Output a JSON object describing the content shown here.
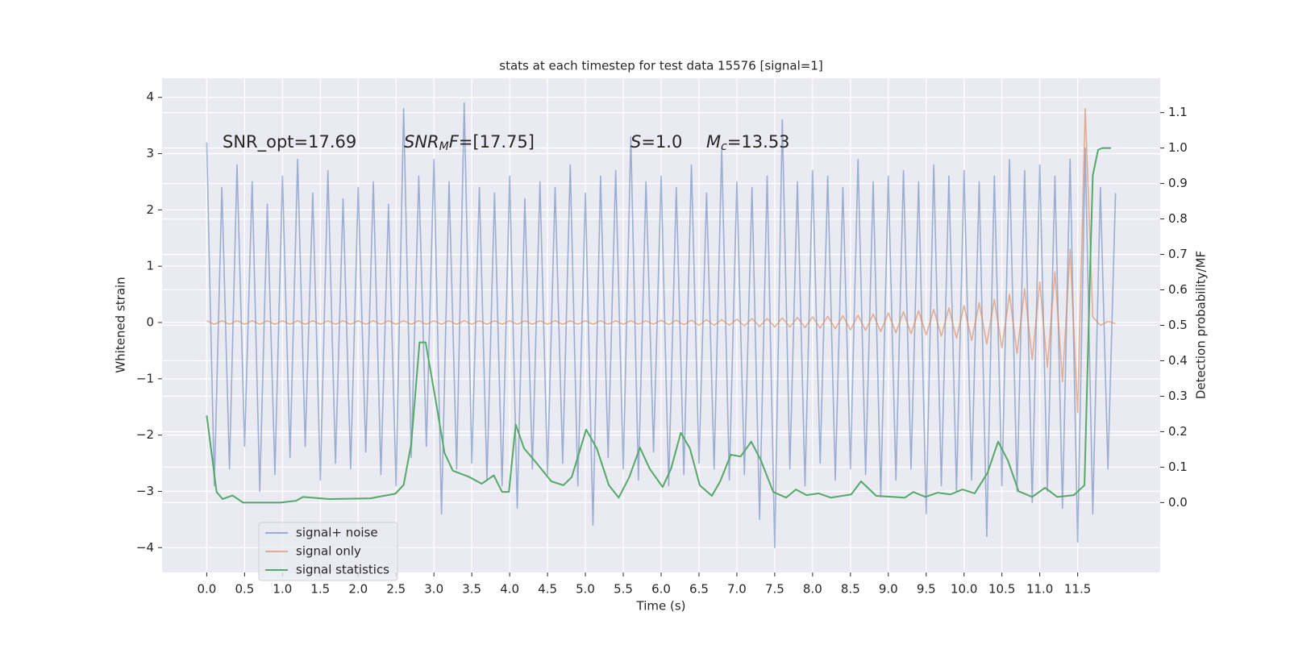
{
  "chart_data": {
    "type": "line",
    "title": "stats at each timestep for test data 15576 [signal=1]",
    "xlabel": "Time (s)",
    "ylabel": "Whitened strain",
    "y2label": "Detection probability/MF",
    "annotations": [
      [
        {
          "text": "SNR_opt=17.69"
        }
      ],
      [
        {
          "text": "SNR",
          "italic": true
        },
        {
          "text": "M",
          "italic": true,
          "sub": true
        },
        {
          "text": "F",
          "italic": true
        },
        {
          "text": "=[17.75]"
        }
      ],
      [
        {
          "text": "S",
          "italic": true
        },
        {
          "text": "=1.0"
        }
      ],
      [
        {
          "text": "M",
          "italic": true
        },
        {
          "text": "c",
          "italic": true,
          "sub": true
        },
        {
          "text": "=13.53"
        }
      ]
    ],
    "x": [
      0.0,
      0.1,
      0.2,
      0.3,
      0.4,
      0.5,
      0.6,
      0.7,
      0.8,
      0.9,
      1.0,
      1.1,
      1.2,
      1.3,
      1.4,
      1.5,
      1.6,
      1.7,
      1.8,
      1.9,
      2.0,
      2.1,
      2.2,
      2.3,
      2.4,
      2.5,
      2.6,
      2.7,
      2.8,
      2.9,
      3.0,
      3.1,
      3.2,
      3.3,
      3.4,
      3.5,
      3.6,
      3.7,
      3.8,
      3.9,
      4.0,
      4.1,
      4.2,
      4.3,
      4.4,
      4.5,
      4.6,
      4.7,
      4.8,
      4.9,
      5.0,
      5.1,
      5.2,
      5.3,
      5.4,
      5.5,
      5.6,
      5.7,
      5.8,
      5.9,
      6.0,
      6.1,
      6.2,
      6.3,
      6.4,
      6.5,
      6.6,
      6.7,
      6.8,
      6.9,
      7.0,
      7.1,
      7.2,
      7.3,
      7.4,
      7.5,
      7.6,
      7.7,
      7.8,
      7.9,
      8.0,
      8.1,
      8.2,
      8.3,
      8.4,
      8.5,
      8.6,
      8.7,
      8.8,
      8.9,
      9.0,
      9.1,
      9.2,
      9.3,
      9.4,
      9.5,
      9.6,
      9.7,
      9.8,
      9.9,
      10.0,
      10.1,
      10.2,
      10.3,
      10.4,
      10.5,
      10.6,
      10.7,
      10.8,
      10.9,
      11.0,
      11.1,
      11.2,
      11.3,
      11.4,
      11.5,
      11.6,
      11.7,
      11.8,
      11.9,
      12.0
    ],
    "series": [
      {
        "name": "signal+ noise",
        "color": "#4c72b0",
        "opacity": 0.5,
        "values": [
          3.2,
          -2.9,
          2.4,
          -2.6,
          2.8,
          -2.2,
          2.5,
          -3.0,
          2.1,
          -2.7,
          2.6,
          -2.4,
          2.9,
          -2.2,
          2.3,
          -2.8,
          2.7,
          -2.5,
          2.2,
          -2.6,
          2.4,
          -2.3,
          2.5,
          -2.7,
          2.1,
          -2.9,
          3.8,
          -2.4,
          2.6,
          -2.2,
          2.9,
          -3.4,
          2.5,
          -2.6,
          3.9,
          -2.5,
          2.4,
          -2.8,
          2.3,
          -2.9,
          2.6,
          -3.3,
          2.2,
          -2.6,
          2.5,
          -2.7,
          2.4,
          -2.5,
          2.8,
          -2.9,
          2.3,
          -3.6,
          2.6,
          -2.4,
          2.7,
          -2.6,
          3.3,
          -2.8,
          2.5,
          -2.3,
          2.6,
          -2.9,
          2.4,
          -2.7,
          2.8,
          -2.5,
          2.3,
          -2.6,
          3.1,
          -2.8,
          2.5,
          -2.7,
          2.4,
          -3.5,
          2.6,
          -4.0,
          3.6,
          -2.6,
          2.5,
          -2.9,
          2.7,
          -2.5,
          2.6,
          -2.8,
          2.4,
          -2.6,
          2.9,
          -2.7,
          2.5,
          -3.1,
          2.6,
          -2.8,
          2.7,
          -2.6,
          2.5,
          -3.4,
          2.8,
          -2.9,
          2.6,
          -3.0,
          2.7,
          -2.8,
          2.5,
          -3.8,
          2.6,
          -2.9,
          2.9,
          -3.0,
          2.7,
          -3.2,
          2.8,
          -3.0,
          2.6,
          -3.3,
          2.9,
          -3.9,
          3.1,
          -3.4,
          2.4,
          -2.6,
          2.3
        ]
      },
      {
        "name": "signal only",
        "color": "#dd8452",
        "opacity": 0.6,
        "values": [
          0.03,
          -0.03,
          0.03,
          -0.03,
          0.03,
          -0.03,
          0.03,
          -0.03,
          0.03,
          -0.03,
          0.03,
          -0.03,
          0.03,
          -0.03,
          0.03,
          -0.03,
          0.03,
          -0.03,
          0.03,
          -0.03,
          0.03,
          -0.03,
          0.03,
          -0.03,
          0.03,
          -0.03,
          0.03,
          -0.03,
          0.03,
          -0.03,
          0.03,
          -0.03,
          0.03,
          -0.03,
          0.03,
          -0.03,
          0.03,
          -0.03,
          0.03,
          -0.03,
          0.03,
          -0.03,
          0.03,
          -0.03,
          0.03,
          -0.03,
          0.03,
          -0.03,
          0.03,
          -0.03,
          0.03,
          -0.03,
          0.03,
          -0.03,
          0.03,
          -0.03,
          0.03,
          -0.03,
          0.03,
          -0.03,
          0.04,
          -0.04,
          0.04,
          -0.04,
          0.04,
          -0.05,
          0.05,
          -0.05,
          0.05,
          -0.05,
          0.06,
          -0.06,
          0.07,
          -0.07,
          0.07,
          -0.08,
          0.08,
          -0.08,
          0.09,
          -0.09,
          0.1,
          -0.1,
          0.11,
          -0.11,
          0.12,
          -0.13,
          0.13,
          -0.14,
          0.15,
          -0.16,
          0.17,
          -0.18,
          0.19,
          -0.2,
          0.21,
          -0.22,
          0.23,
          -0.24,
          0.26,
          -0.28,
          0.3,
          -0.32,
          0.35,
          -0.38,
          0.41,
          -0.45,
          0.5,
          -0.55,
          0.6,
          -0.66,
          0.72,
          -0.8,
          0.9,
          -1.05,
          1.3,
          -1.6,
          3.8,
          0.1,
          -0.05,
          0.02,
          -0.02
        ]
      },
      {
        "name": "signal statistics",
        "color": "#55a868",
        "opacity": 1,
        "axis": "y2",
        "x": [
          0,
          0.13,
          0.21,
          0.34,
          0.48,
          0.97,
          1.18,
          1.27,
          1.62,
          2.16,
          2.49,
          2.6,
          2.7,
          2.81,
          2.89,
          3.03,
          3.14,
          3.25,
          3.47,
          3.63,
          3.79,
          3.9,
          3.99,
          4.08,
          4.19,
          4.33,
          4.55,
          4.71,
          4.82,
          5.01,
          5.15,
          5.31,
          5.44,
          5.58,
          5.72,
          5.85,
          6.02,
          6.13,
          6.26,
          6.38,
          6.51,
          6.67,
          6.78,
          6.92,
          7.05,
          7.19,
          7.32,
          7.48,
          7.65,
          7.78,
          7.92,
          8.08,
          8.24,
          8.51,
          8.64,
          8.84,
          9.22,
          9.33,
          9.49,
          9.65,
          9.82,
          9.98,
          10.14,
          10.31,
          10.45,
          10.58,
          10.72,
          10.9,
          11.07,
          11.23,
          11.45,
          11.59,
          11.67,
          11.7,
          11.77,
          11.83,
          11.94
        ],
        "values": [
          0.246,
          0.03,
          0.01,
          0.02,
          0.0,
          0.0,
          0.005,
          0.016,
          0.01,
          0.012,
          0.025,
          0.05,
          0.165,
          0.452,
          0.452,
          0.28,
          0.14,
          0.09,
          0.072,
          0.053,
          0.077,
          0.03,
          0.03,
          0.22,
          0.153,
          0.118,
          0.06,
          0.049,
          0.072,
          0.206,
          0.153,
          0.049,
          0.014,
          0.072,
          0.155,
          0.095,
          0.044,
          0.095,
          0.197,
          0.153,
          0.049,
          0.019,
          0.06,
          0.135,
          0.13,
          0.172,
          0.118,
          0.03,
          0.014,
          0.037,
          0.021,
          0.026,
          0.014,
          0.023,
          0.06,
          0.019,
          0.014,
          0.03,
          0.016,
          0.028,
          0.023,
          0.037,
          0.026,
          0.084,
          0.172,
          0.118,
          0.032,
          0.016,
          0.042,
          0.016,
          0.021,
          0.049,
          0.698,
          0.923,
          0.995,
          1.0,
          1.0
        ]
      }
    ],
    "xlim": [
      -0.59,
      12.59
    ],
    "xticks": [
      {
        "value": 0,
        "label": "0.0"
      },
      0.5,
      {
        "value": 1,
        "label": "1.0"
      },
      1.5,
      {
        "value": 2,
        "label": "2.0"
      },
      2.5,
      {
        "value": 3,
        "label": "3.0"
      },
      3.5,
      {
        "value": 4,
        "label": "4.0"
      },
      4.5,
      {
        "value": 5,
        "label": "5.0"
      },
      5.5,
      {
        "value": 6,
        "label": "6.0"
      },
      6.5,
      {
        "value": 7,
        "label": "7.0"
      },
      7.5,
      {
        "value": 8,
        "label": "8.0"
      },
      8.5,
      {
        "value": 9,
        "label": "9.0"
      },
      9.5,
      {
        "value": 10,
        "label": "10.0"
      },
      10.5,
      {
        "value": 11,
        "label": "11.0"
      },
      11.5
    ],
    "ylim": [
      -4.44,
      4.34
    ],
    "yticks": [
      {
        "value": -4,
        "label": "−4"
      },
      {
        "value": -3,
        "label": "−3"
      },
      {
        "value": -2,
        "label": "−2"
      },
      {
        "value": -1,
        "label": "−1"
      },
      0,
      1,
      2,
      3,
      4
    ],
    "y2lim": [
      -0.197,
      1.197
    ],
    "y2ticks": [
      {
        "value": 0,
        "label": "0.0"
      },
      0.1,
      0.2,
      0.3,
      0.4,
      0.5,
      0.6,
      0.7,
      0.8,
      0.9,
      {
        "value": 1,
        "label": "1.0"
      },
      1.1
    ],
    "grid": true,
    "legend": "lower left"
  }
}
